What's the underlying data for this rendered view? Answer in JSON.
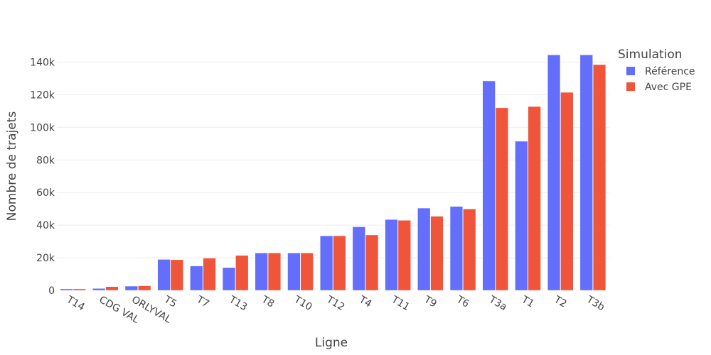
{
  "chart_data": {
    "type": "bar",
    "categories": [
      "T14",
      "CDG VAL",
      "ORLYVAL",
      "T5",
      "T7",
      "T13",
      "T8",
      "T10",
      "T12",
      "T4",
      "T11",
      "T9",
      "T6",
      "T3a",
      "T1",
      "T2",
      "T3b"
    ],
    "series": [
      {
        "name": "Référence",
        "color": "#636efa",
        "values": [
          900,
          1200,
          2600,
          19000,
          15000,
          14000,
          23000,
          23000,
          33500,
          39000,
          43500,
          50500,
          51500,
          128500,
          91500,
          144500,
          144500
        ]
      },
      {
        "name": "Avec GPE",
        "color": "#ef553b",
        "values": [
          900,
          2300,
          2800,
          18800,
          19800,
          21500,
          23000,
          23000,
          33500,
          34000,
          43000,
          45500,
          50000,
          112000,
          112800,
          121500,
          138500
        ]
      }
    ],
    "xlabel": "Ligne",
    "ylabel": "Nombre de trajets",
    "ylim": [
      0,
      152000
    ],
    "yticks": [
      0,
      20000,
      40000,
      60000,
      80000,
      100000,
      120000,
      140000
    ],
    "ytick_labels": [
      "0",
      "20k",
      "40k",
      "60k",
      "80k",
      "100k",
      "120k",
      "140k"
    ],
    "grid": true,
    "legend_title": "Simulation",
    "legend_position": "top-right"
  }
}
